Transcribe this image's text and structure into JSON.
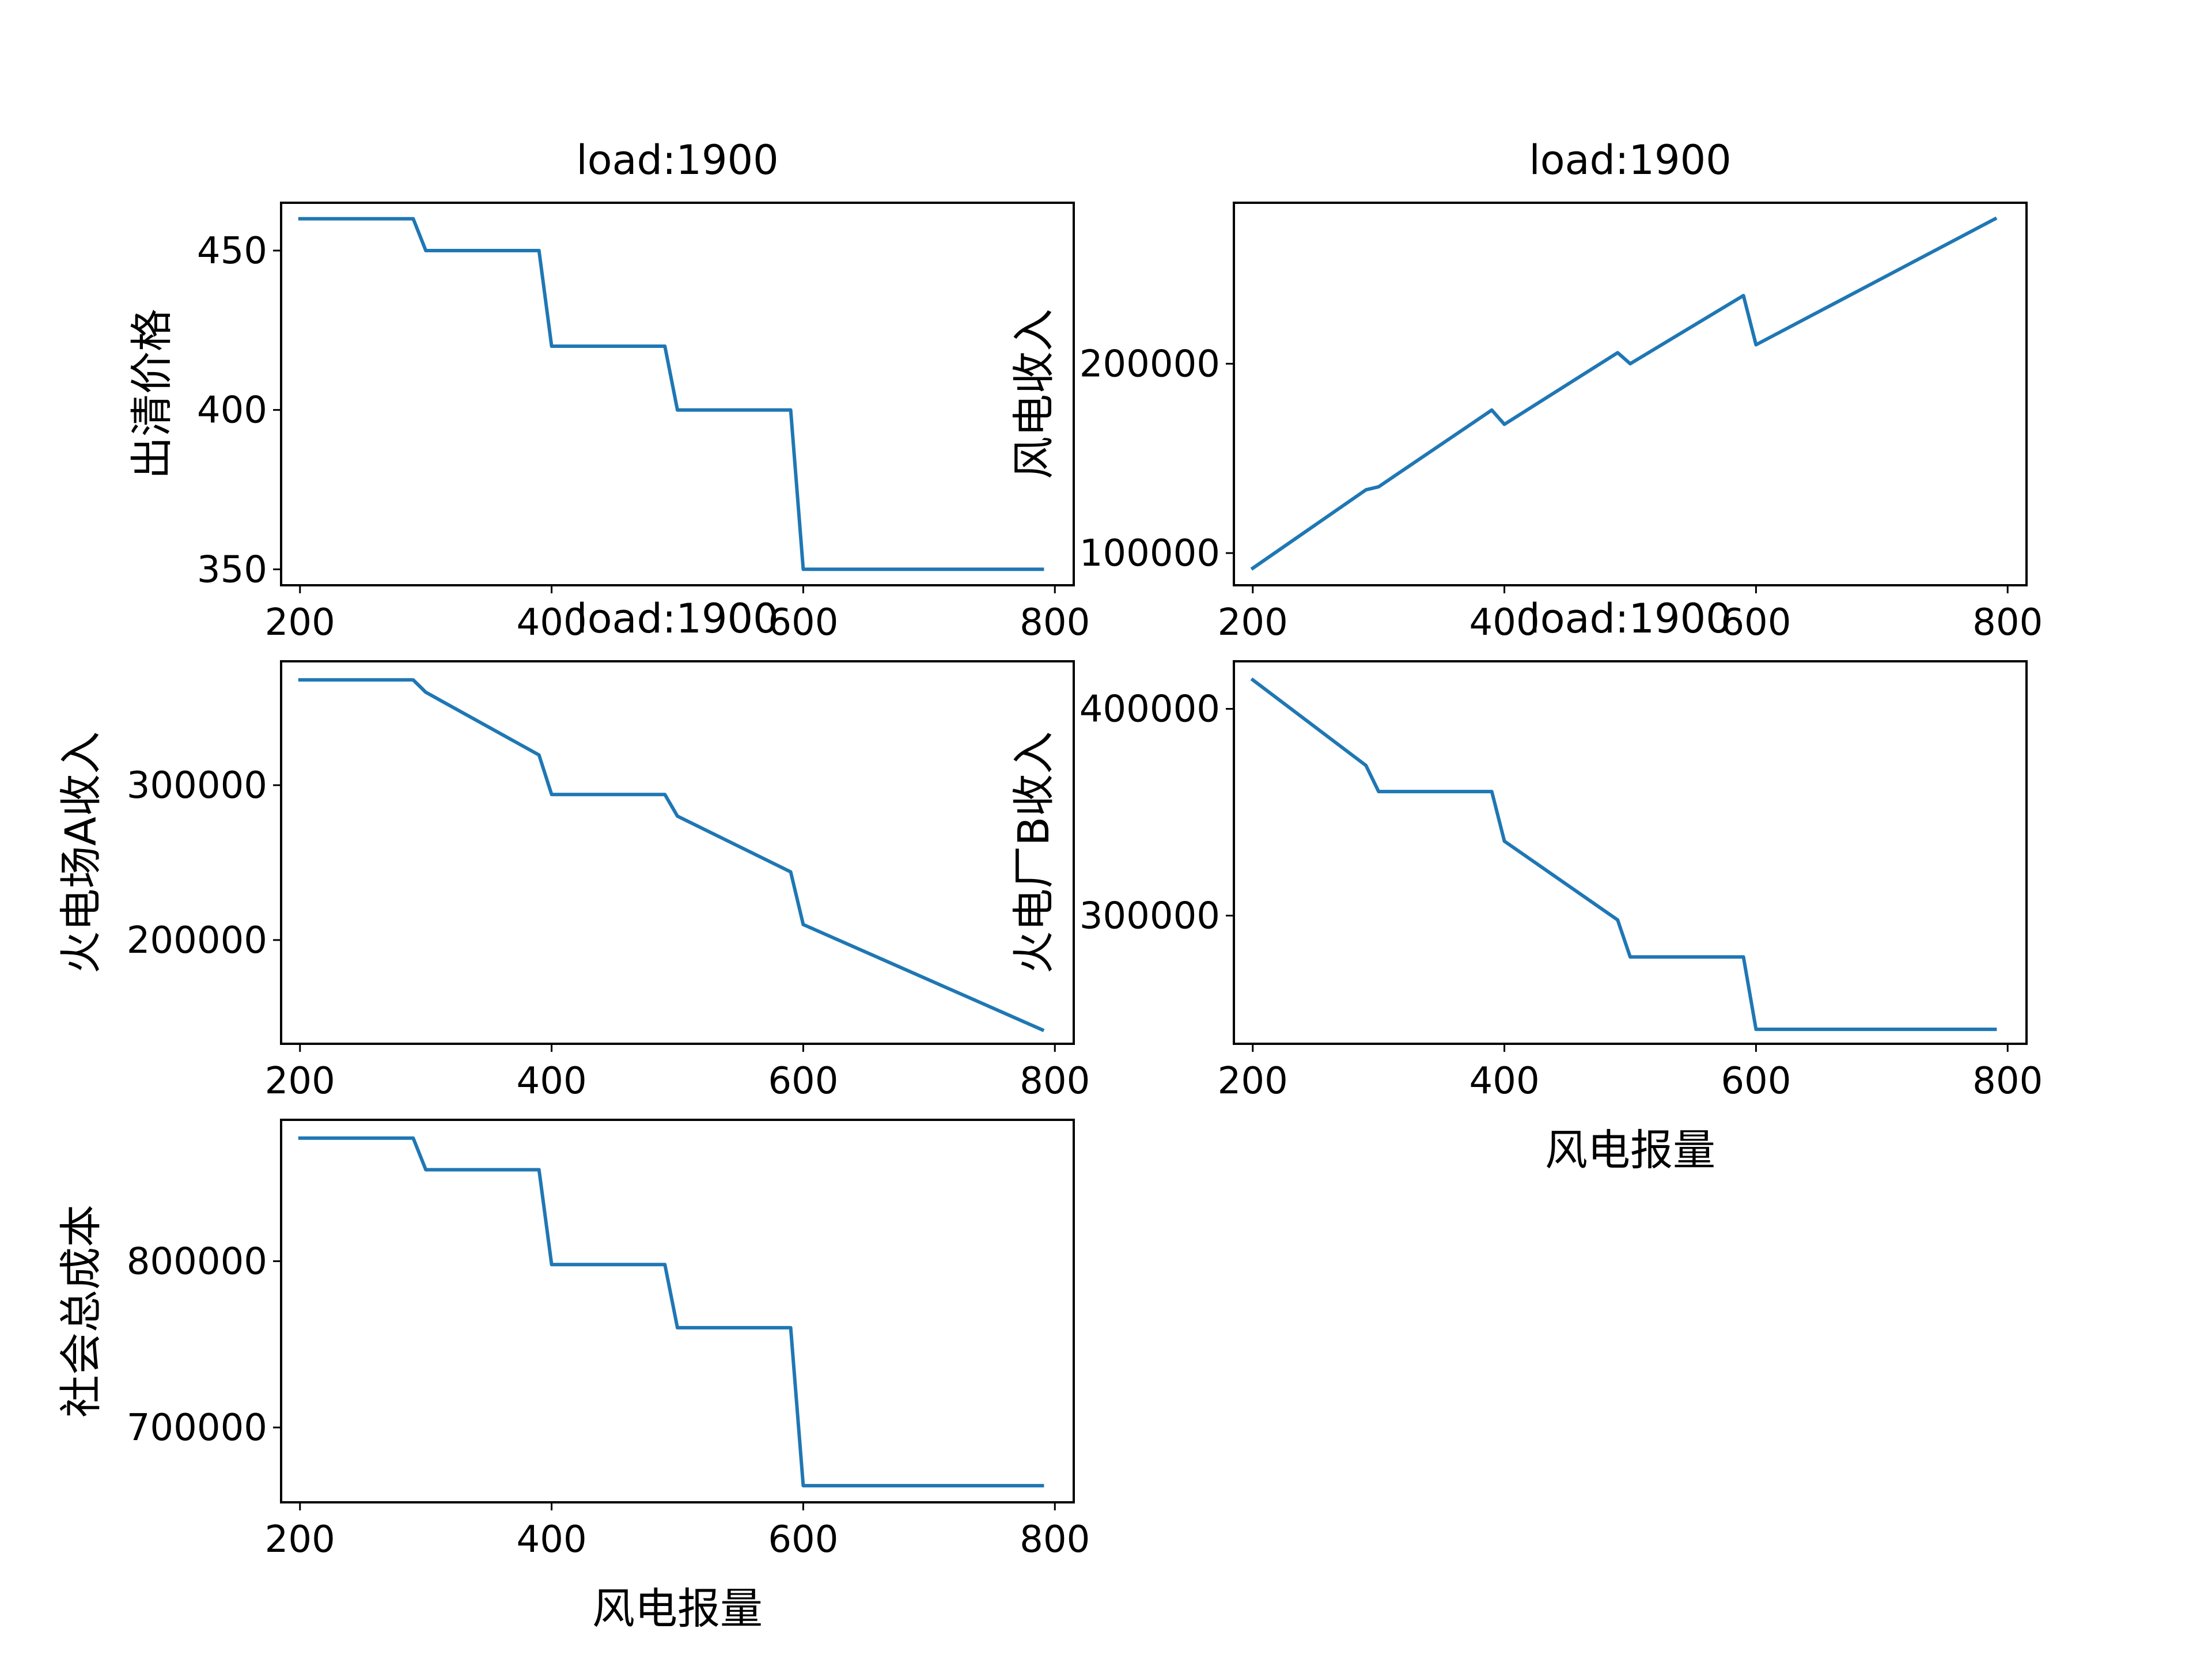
{
  "style": {
    "line_color": "#1f77b4",
    "background": "#ffffff"
  },
  "chart_data": [
    {
      "type": "line",
      "title": "load:1900",
      "xlabel": "",
      "ylabel": "出清价格",
      "xlim": [
        185,
        815
      ],
      "ylim": [
        345,
        465
      ],
      "xticks": [
        200,
        400,
        600,
        800
      ],
      "xtick_labels": [
        "200",
        "400",
        "600",
        "800"
      ],
      "yticks": [
        350,
        400,
        450
      ],
      "ytick_labels": [
        "350",
        "400",
        "450"
      ],
      "grid": false,
      "x": [
        200,
        290,
        300,
        390,
        400,
        490,
        500,
        590,
        600,
        790
      ],
      "y": [
        460,
        460,
        450,
        450,
        420,
        420,
        400,
        400,
        350,
        350
      ]
    },
    {
      "type": "line",
      "title": "load:1900",
      "xlabel": "",
      "ylabel": "风电收入",
      "xlim": [
        185,
        815
      ],
      "ylim": [
        83000,
        285000
      ],
      "xticks": [
        200,
        400,
        600,
        800
      ],
      "xtick_labels": [
        "200",
        "400",
        "600",
        "800"
      ],
      "yticks": [
        100000,
        200000
      ],
      "ytick_labels": [
        "100000",
        "200000"
      ],
      "grid": false,
      "x": [
        200,
        290,
        300,
        390,
        400,
        490,
        500,
        590,
        600,
        790
      ],
      "y": [
        92000,
        133400,
        135000,
        175500,
        168000,
        205800,
        200000,
        236000,
        210000,
        276500
      ]
    },
    {
      "type": "line",
      "title": "load:1900",
      "xlabel": "",
      "ylabel": "火电场A收入",
      "xlim": [
        185,
        815
      ],
      "ylim": [
        133000,
        380000
      ],
      "xticks": [
        200,
        400,
        600,
        800
      ],
      "xtick_labels": [
        "200",
        "400",
        "600",
        "800"
      ],
      "yticks": [
        200000,
        300000
      ],
      "ytick_labels": [
        "200000",
        "300000"
      ],
      "grid": false,
      "x": [
        200,
        290,
        300,
        390,
        400,
        490,
        500,
        590,
        600,
        790
      ],
      "y": [
        368000,
        368000,
        360000,
        319500,
        294000,
        294000,
        280000,
        244000,
        210000,
        142000
      ]
    },
    {
      "type": "line",
      "title": "load:1900",
      "xlabel": "风电报量",
      "ylabel": "火电厂B收入",
      "xlim": [
        185,
        815
      ],
      "ylim": [
        238000,
        423000
      ],
      "xticks": [
        200,
        400,
        600,
        800
      ],
      "xtick_labels": [
        "200",
        "400",
        "600",
        "800"
      ],
      "yticks": [
        300000,
        400000
      ],
      "ytick_labels": [
        "300000",
        "400000"
      ],
      "grid": false,
      "x": [
        200,
        290,
        300,
        390,
        400,
        490,
        500,
        590,
        600,
        790
      ],
      "y": [
        414000,
        372600,
        360000,
        360000,
        336000,
        297900,
        280000,
        280000,
        245000,
        245000
      ]
    },
    {
      "type": "line",
      "title": "",
      "xlabel": "风电报量",
      "ylabel": "社会总成本",
      "xlim": [
        185,
        815
      ],
      "ylim": [
        655000,
        885000
      ],
      "xticks": [
        200,
        400,
        600,
        800
      ],
      "xtick_labels": [
        "200",
        "400",
        "600",
        "800"
      ],
      "yticks": [
        700000,
        800000
      ],
      "ytick_labels": [
        "700000",
        "800000"
      ],
      "grid": false,
      "x": [
        200,
        290,
        300,
        390,
        400,
        490,
        500,
        590,
        600,
        790
      ],
      "y": [
        874000,
        874000,
        855000,
        855000,
        798000,
        798000,
        760000,
        760000,
        665000,
        665000
      ]
    }
  ]
}
